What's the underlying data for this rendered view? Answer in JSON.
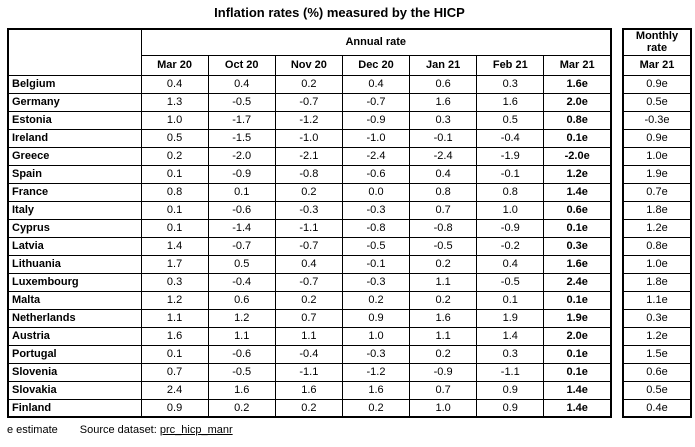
{
  "title": "Inflation rates (%) measured by the HICP",
  "footer": {
    "estimate_note": "e estimate",
    "source_label": "Source dataset:",
    "source_link": "prc_hicp_manr"
  },
  "chart_data": {
    "type": "table",
    "title": "Inflation rates (%) measured by the HICP",
    "column_groups": {
      "annual": "Annual rate",
      "monthly": "Monthly rate"
    },
    "annual_columns": [
      "Mar 20",
      "Oct 20",
      "Nov 20",
      "Dec 20",
      "Jan 21",
      "Feb 21",
      "Mar 21"
    ],
    "monthly_column": "Mar 21",
    "rows": [
      {
        "country": "Belgium",
        "annual": [
          "0.4",
          "0.4",
          "0.2",
          "0.4",
          "0.6",
          "0.3",
          "1.6e"
        ],
        "monthly": "0.9e"
      },
      {
        "country": "Germany",
        "annual": [
          "1.3",
          "-0.5",
          "-0.7",
          "-0.7",
          "1.6",
          "1.6",
          "2.0e"
        ],
        "monthly": "0.5e"
      },
      {
        "country": "Estonia",
        "annual": [
          "1.0",
          "-1.7",
          "-1.2",
          "-0.9",
          "0.3",
          "0.5",
          "0.8e"
        ],
        "monthly": "-0.3e"
      },
      {
        "country": "Ireland",
        "annual": [
          "0.5",
          "-1.5",
          "-1.0",
          "-1.0",
          "-0.1",
          "-0.4",
          "0.1e"
        ],
        "monthly": "0.9e"
      },
      {
        "country": "Greece",
        "annual": [
          "0.2",
          "-2.0",
          "-2.1",
          "-2.4",
          "-2.4",
          "-1.9",
          "-2.0e"
        ],
        "monthly": "1.0e"
      },
      {
        "country": "Spain",
        "annual": [
          "0.1",
          "-0.9",
          "-0.8",
          "-0.6",
          "0.4",
          "-0.1",
          "1.2e"
        ],
        "monthly": "1.9e"
      },
      {
        "country": "France",
        "annual": [
          "0.8",
          "0.1",
          "0.2",
          "0.0",
          "0.8",
          "0.8",
          "1.4e"
        ],
        "monthly": "0.7e"
      },
      {
        "country": "Italy",
        "annual": [
          "0.1",
          "-0.6",
          "-0.3",
          "-0.3",
          "0.7",
          "1.0",
          "0.6e"
        ],
        "monthly": "1.8e"
      },
      {
        "country": "Cyprus",
        "annual": [
          "0.1",
          "-1.4",
          "-1.1",
          "-0.8",
          "-0.8",
          "-0.9",
          "0.1e"
        ],
        "monthly": "1.2e"
      },
      {
        "country": "Latvia",
        "annual": [
          "1.4",
          "-0.7",
          "-0.7",
          "-0.5",
          "-0.5",
          "-0.2",
          "0.3e"
        ],
        "monthly": "0.8e"
      },
      {
        "country": "Lithuania",
        "annual": [
          "1.7",
          "0.5",
          "0.4",
          "-0.1",
          "0.2",
          "0.4",
          "1.6e"
        ],
        "monthly": "1.0e"
      },
      {
        "country": "Luxembourg",
        "annual": [
          "0.3",
          "-0.4",
          "-0.7",
          "-0.3",
          "1.1",
          "-0.5",
          "2.4e"
        ],
        "monthly": "1.8e"
      },
      {
        "country": "Malta",
        "annual": [
          "1.2",
          "0.6",
          "0.2",
          "0.2",
          "0.2",
          "0.1",
          "0.1e"
        ],
        "monthly": "1.1e"
      },
      {
        "country": "Netherlands",
        "annual": [
          "1.1",
          "1.2",
          "0.7",
          "0.9",
          "1.6",
          "1.9",
          "1.9e"
        ],
        "monthly": "0.3e"
      },
      {
        "country": "Austria",
        "annual": [
          "1.6",
          "1.1",
          "1.1",
          "1.0",
          "1.1",
          "1.4",
          "2.0e"
        ],
        "monthly": "1.2e"
      },
      {
        "country": "Portugal",
        "annual": [
          "0.1",
          "-0.6",
          "-0.4",
          "-0.3",
          "0.2",
          "0.3",
          "0.1e"
        ],
        "monthly": "1.5e"
      },
      {
        "country": "Slovenia",
        "annual": [
          "0.7",
          "-0.5",
          "-1.1",
          "-1.2",
          "-0.9",
          "-1.1",
          "0.1e"
        ],
        "monthly": "0.6e"
      },
      {
        "country": "Slovakia",
        "annual": [
          "2.4",
          "1.6",
          "1.6",
          "1.6",
          "0.7",
          "0.9",
          "1.4e"
        ],
        "monthly": "0.5e"
      },
      {
        "country": "Finland",
        "annual": [
          "0.9",
          "0.2",
          "0.2",
          "0.2",
          "1.0",
          "0.9",
          "1.4e"
        ],
        "monthly": "0.4e"
      }
    ]
  }
}
